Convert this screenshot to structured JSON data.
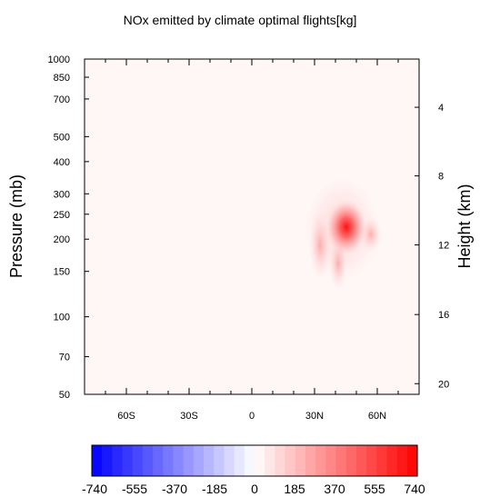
{
  "chart_data": {
    "type": "heatmap",
    "title": "NOx emitted by climate optimal flights[kg]",
    "ylabel": "Pressure (mb)",
    "y2label": "Height (km)",
    "x_ticks": [
      "60S",
      "30S",
      "0",
      "30N",
      "60N"
    ],
    "x_tick_values": [
      -60,
      -30,
      0,
      30,
      60
    ],
    "xlim": [
      -80,
      80
    ],
    "y_scale": "log",
    "ylim": [
      1000,
      50
    ],
    "y_ticks": [
      50,
      70,
      100,
      150,
      200,
      250,
      300,
      400,
      500,
      700,
      850,
      1000
    ],
    "y2_ticks": [
      20,
      16,
      12,
      8,
      4
    ],
    "y2_tick_pressures": [
      55,
      102,
      190,
      352,
      650
    ],
    "background_value": 0,
    "emission_plume": {
      "latitude_range": [
        27,
        63
      ],
      "pressure_range": [
        155,
        380
      ],
      "peak": {
        "latitude": 44,
        "pressure": 240,
        "value": 740
      }
    },
    "colorbar": {
      "labels": [
        "-740",
        "-555",
        "-370",
        "-185",
        "0",
        "185",
        "370",
        "555",
        "740"
      ],
      "min": -740,
      "max": 740,
      "low_color": "#0000ff",
      "mid_color": "#ffffff",
      "high_color": "#ff0000"
    }
  }
}
